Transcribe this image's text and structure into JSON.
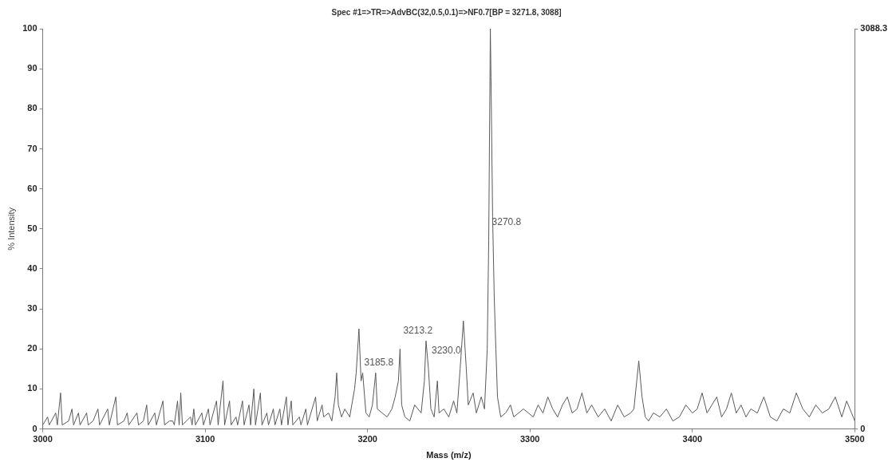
{
  "chart_data": {
    "type": "line",
    "title": "Spec #1=>TR=>AdvBC(32,0.5,0.1)=>NF0.7[BP = 3271.8, 3088]",
    "xlabel": "Mass (m/z)",
    "ylabel": "% Intensity",
    "xlim": [
      3000,
      3500
    ],
    "xticks": [
      3000,
      3100,
      3200,
      3300,
      3400,
      3500
    ],
    "ylim": [
      0,
      100
    ],
    "yticks": [
      0,
      10,
      20,
      30,
      40,
      50,
      60,
      70,
      80,
      90,
      100
    ],
    "y2lim": [
      0,
      3088.3
    ],
    "y2ticks": [
      0,
      3088.3
    ],
    "grid": false,
    "legend": false,
    "marker": "none",
    "line_style": "solid",
    "annotations": [
      {
        "text": "3270.8",
        "x": 3274.6,
        "y": 47
      },
      {
        "text": "3213.2",
        "x": 3220,
        "y": 20
      },
      {
        "text": "3185.8",
        "x": 3196,
        "y": 12
      },
      {
        "text": "3230.0",
        "x": 3237.5,
        "y": 15
      }
    ],
    "series": [
      {
        "color": "#5a5a5a",
        "x": [
          3000,
          3003,
          3004,
          3008,
          3009,
          3011,
          3012,
          3016,
          3018,
          3019,
          3022,
          3023,
          3027,
          3028,
          3031,
          3034,
          3035,
          3040,
          3041,
          3045,
          3046,
          3050,
          3052,
          3053,
          3058,
          3059,
          3062,
          3064,
          3065,
          3069,
          3070,
          3074,
          3075,
          3078,
          3080,
          3081,
          3083,
          3084,
          3085,
          3086,
          3091,
          3092,
          3093,
          3094,
          3098,
          3099,
          3102,
          3103,
          3107,
          3108,
          3111,
          3112,
          3115,
          3116,
          3119,
          3120,
          3123,
          3124,
          3127,
          3128,
          3130,
          3131,
          3134,
          3135,
          3138,
          3139,
          3142,
          3143,
          3146,
          3147,
          3150,
          3151,
          3153,
          3154,
          3158,
          3159,
          3162,
          3163,
          3168,
          3169,
          3172,
          3173,
          3176,
          3178,
          3180,
          3181,
          3182,
          3184,
          3186,
          3189,
          3192,
          3193,
          3194.7,
          3196,
          3197,
          3199,
          3201,
          3203,
          3205,
          3206,
          3209,
          3212,
          3215,
          3217,
          3219,
          3220,
          3221,
          3223,
          3226,
          3229,
          3233,
          3235,
          3236,
          3237.5,
          3239,
          3241,
          3243,
          3244,
          3247,
          3250,
          3253,
          3255,
          3257,
          3259,
          3260.8,
          3262,
          3265,
          3267,
          3270,
          3272,
          3273.7,
          3274.6,
          3275.6,
          3276,
          3277,
          3278,
          3279,
          3280,
          3282,
          3285,
          3288,
          3290,
          3293,
          3296,
          3299,
          3302,
          3305,
          3308,
          3311,
          3314,
          3317,
          3320,
          3323,
          3326,
          3329,
          3332,
          3335,
          3338,
          3342,
          3346,
          3350,
          3354,
          3358,
          3362,
          3364,
          3367,
          3369,
          3371,
          3373,
          3376,
          3380,
          3384,
          3388,
          3392,
          3396,
          3400,
          3403,
          3406,
          3409,
          3412,
          3415,
          3418,
          3421,
          3424,
          3427,
          3430,
          3433,
          3436,
          3440,
          3444,
          3448,
          3452,
          3456,
          3460,
          3464,
          3468,
          3472,
          3476,
          3480,
          3484,
          3488,
          3492,
          3495,
          3498,
          3500
        ],
        "values": [
          1,
          3,
          1,
          4,
          1,
          9,
          1,
          2,
          5,
          1,
          4,
          1,
          4,
          1,
          2,
          5,
          1,
          5,
          1,
          8,
          1,
          2,
          4,
          1,
          4,
          1,
          2,
          6,
          1,
          4,
          1,
          7,
          1,
          2,
          2,
          1,
          7,
          1,
          9,
          1,
          3,
          1,
          5,
          1,
          4,
          1,
          5,
          1,
          7,
          1,
          12,
          1,
          7,
          1,
          3,
          1,
          7,
          1,
          6,
          1,
          10,
          1,
          9,
          1,
          4,
          1,
          5,
          1,
          5,
          1,
          8,
          1,
          7,
          1,
          3,
          1,
          5,
          1,
          8,
          2,
          6,
          3,
          4,
          2,
          8,
          14,
          6,
          3,
          5,
          3,
          10,
          14,
          25,
          12,
          14,
          4,
          3,
          6,
          14,
          5,
          4,
          3,
          5,
          8,
          12,
          20,
          6,
          3,
          2,
          6,
          4,
          12,
          22,
          15,
          5,
          3,
          12,
          4,
          5,
          3,
          7,
          4,
          15,
          27,
          15,
          6,
          9,
          4,
          8,
          5,
          20,
          47,
          100,
          88,
          53,
          33,
          20,
          8,
          3,
          4,
          6,
          3,
          4,
          5,
          4,
          3,
          6,
          4,
          8,
          5,
          3,
          6,
          8,
          4,
          5,
          9,
          4,
          6,
          3,
          5,
          2,
          6,
          3,
          4,
          5,
          17,
          8,
          3,
          2,
          4,
          3,
          5,
          2,
          3,
          6,
          4,
          5,
          9,
          4,
          6,
          8,
          3,
          5,
          9,
          4,
          6,
          3,
          5,
          4,
          8,
          3,
          2,
          5,
          4,
          9,
          5,
          3,
          6,
          4,
          5,
          8,
          3,
          7,
          4,
          2
        ]
      }
    ]
  }
}
